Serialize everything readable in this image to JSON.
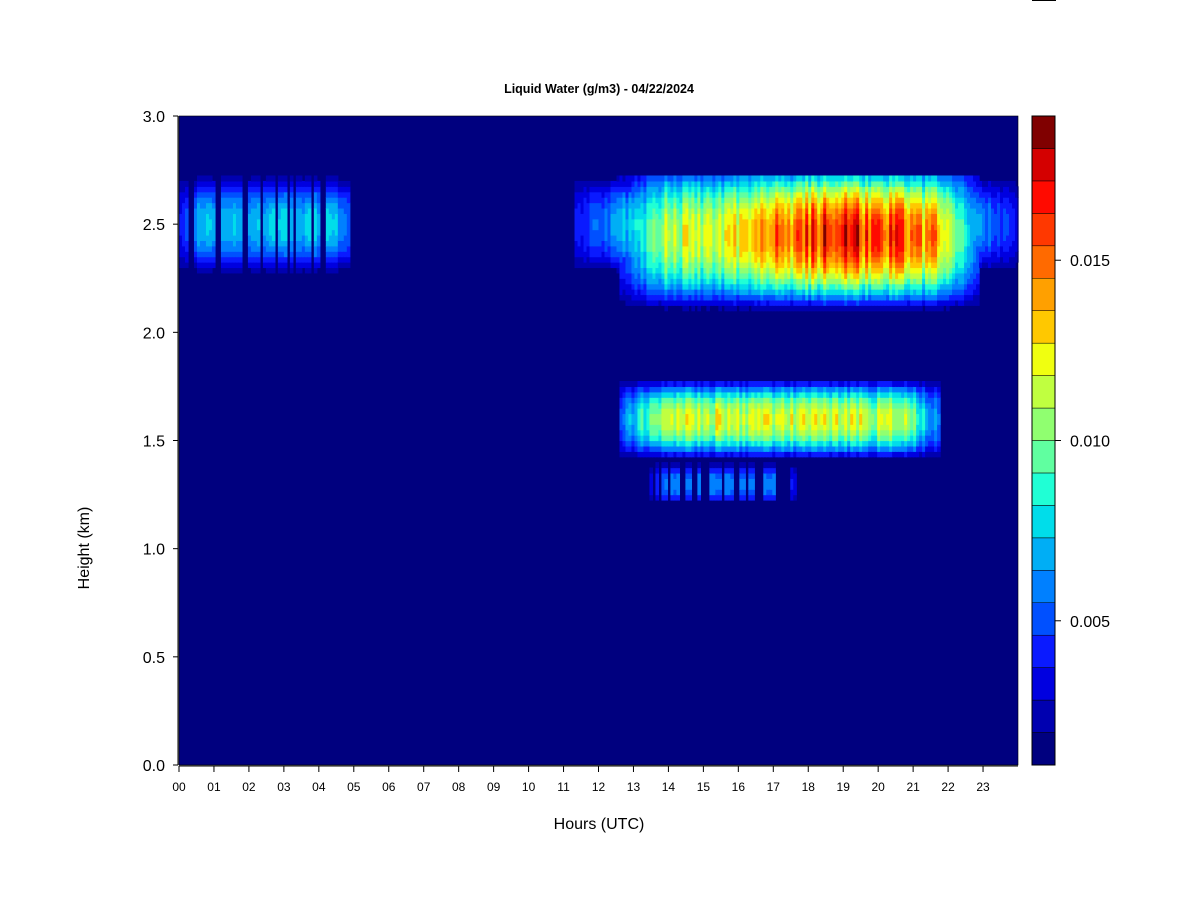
{
  "chart_data": {
    "type": "heatmap",
    "title": "Liquid Water (g/m3) - 04/22/2024",
    "xlabel": "Hours (UTC)",
    "ylabel": "Height (km)",
    "x_range": [
      0,
      24
    ],
    "ylim": [
      0,
      3.0
    ],
    "x_ticks": [
      "00",
      "01",
      "02",
      "03",
      "04",
      "05",
      "06",
      "07",
      "08",
      "09",
      "10",
      "11",
      "12",
      "13",
      "14",
      "15",
      "16",
      "17",
      "18",
      "19",
      "20",
      "21",
      "22",
      "23"
    ],
    "y_ticks": [
      "0.0",
      "0.5",
      "1.0",
      "1.5",
      "2.0",
      "2.5",
      "3.0"
    ],
    "colorbar": {
      "range": [
        0.001,
        0.019
      ],
      "levels": 18,
      "ticks": [
        {
          "value": 0.005,
          "label": "0.005"
        },
        {
          "value": 0.01,
          "label": "0.010"
        },
        {
          "value": 0.015,
          "label": "0.015"
        }
      ],
      "colors": [
        "#00007F",
        "#0000B0",
        "#0000E0",
        "#0A1AFF",
        "#0050FF",
        "#0080FF",
        "#00AEF5",
        "#00DDEA",
        "#20FFD5",
        "#60FFA0",
        "#90FF70",
        "#C0FF40",
        "#F0FF10",
        "#FFC800",
        "#FFA000",
        "#FF6A00",
        "#FF3800",
        "#FF0A00",
        "#D40000",
        "#800000"
      ]
    },
    "background_value": 0.001,
    "features": [
      {
        "name": "upper layer, early hours",
        "x_start": 0.0,
        "x_end": 5.1,
        "base_km": 2.28,
        "top_km": 2.72,
        "peak_g_m3": 0.0075,
        "peak_height_km": 2.5
      },
      {
        "name": "upper layer, afternoon",
        "x_start": 11.3,
        "x_end": 24.0,
        "base_km": 2.28,
        "top_km": 2.72,
        "peak_g_m3": 0.008,
        "peak_height_km": 2.5
      },
      {
        "name": "thick upper cloud",
        "x_start": 12.6,
        "x_end": 22.9,
        "base_km": 2.05,
        "top_km": 2.72,
        "peak_g_m3": 0.0175,
        "peak_height_km": 2.45
      },
      {
        "name": "middle layer",
        "x_start": 12.6,
        "x_end": 21.8,
        "base_km": 1.42,
        "top_km": 1.78,
        "peak_g_m3": 0.0125,
        "peak_height_km": 1.6
      },
      {
        "name": "lower wisps",
        "x_start": 13.4,
        "x_end": 17.7,
        "base_km": 1.22,
        "top_km": 1.42,
        "peak_g_m3": 0.006,
        "peak_height_km": 1.3
      }
    ]
  }
}
